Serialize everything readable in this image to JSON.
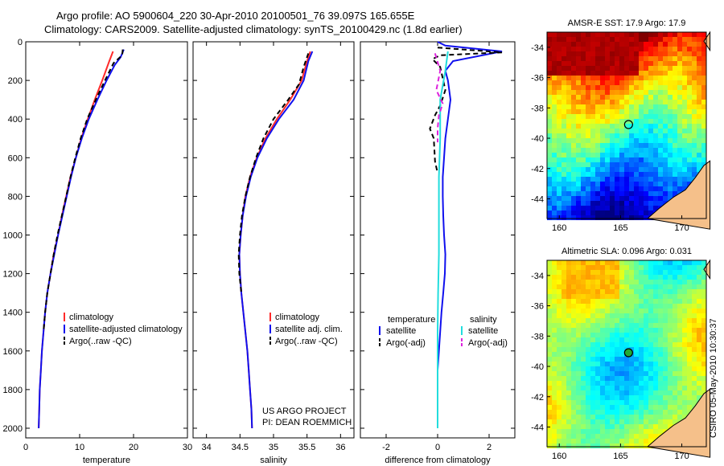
{
  "header": {
    "line1": "Argo profile: AO 5900604_220 30-Apr-2010 20100501_76 39.097S 165.655E",
    "line2": "Climatology: CARS2009. Satellite-adjusted climatology: synTS_20100429.nc (1.8d earlier)"
  },
  "colors": {
    "climatology": "#ff2a2a",
    "satellite": "#1010ee",
    "argo": "#000000",
    "sat_salinity": "#22dddd",
    "argo_salinity_adj": "#dd22dd"
  },
  "chart_data": [
    {
      "type": "line",
      "xlabel": "temperature",
      "xlim": [
        0,
        30
      ],
      "ylim": [
        0,
        2050
      ],
      "y_reversed": true,
      "x_ticks": [
        "0",
        "10",
        "20",
        "30"
      ],
      "y_ticks": [
        "0",
        "200",
        "400",
        "600",
        "800",
        "1000",
        "1200",
        "1400",
        "1600",
        "1800",
        "2000"
      ],
      "legend": [
        "climatology",
        "satellite-adjusted climatology",
        "Argo(..raw -QC)"
      ],
      "legend_placement": "bottom-right",
      "series": [
        {
          "name": "climatology",
          "color": "#ff2a2a",
          "dash": false,
          "points": [
            [
              16.2,
              50
            ],
            [
              15.5,
              100
            ],
            [
              14.2,
              200
            ],
            [
              12.8,
              300
            ],
            [
              11.5,
              400
            ],
            [
              10.3,
              500
            ],
            [
              9.3,
              600
            ],
            [
              8.3,
              700
            ],
            [
              7.5,
              800
            ],
            [
              6.7,
              900
            ],
            [
              6.0,
              1000
            ],
            [
              5.2,
              1100
            ],
            [
              4.6,
              1200
            ],
            [
              4.0,
              1300
            ],
            [
              3.6,
              1400
            ],
            [
              3.3,
              1500
            ],
            [
              3.0,
              1600
            ],
            [
              2.8,
              1700
            ],
            [
              2.6,
              1800
            ],
            [
              2.5,
              1900
            ],
            [
              2.4,
              2000
            ]
          ]
        },
        {
          "name": "satellite-adjusted climatology",
          "color": "#1010ee",
          "dash": false,
          "points": [
            [
              18.2,
              40
            ],
            [
              17.6,
              80
            ],
            [
              16.5,
              120
            ],
            [
              15.0,
              200
            ],
            [
              13.3,
              300
            ],
            [
              11.7,
              400
            ],
            [
              10.4,
              500
            ],
            [
              9.3,
              600
            ],
            [
              8.4,
              700
            ],
            [
              7.6,
              800
            ],
            [
              6.8,
              900
            ],
            [
              6.0,
              1000
            ],
            [
              5.3,
              1100
            ],
            [
              4.6,
              1200
            ],
            [
              4.0,
              1300
            ],
            [
              3.6,
              1400
            ],
            [
              3.3,
              1500
            ],
            [
              3.0,
              1600
            ],
            [
              2.8,
              1700
            ],
            [
              2.6,
              1800
            ],
            [
              2.5,
              1900
            ],
            [
              2.4,
              2000
            ]
          ]
        },
        {
          "name": "Argo(..raw -QC)",
          "color": "#000000",
          "dash": true,
          "points": [
            [
              18.0,
              40
            ],
            [
              17.9,
              70
            ],
            [
              16.3,
              110
            ],
            [
              14.7,
              200
            ],
            [
              13.0,
              300
            ],
            [
              11.4,
              400
            ],
            [
              10.2,
              500
            ],
            [
              9.2,
              600
            ],
            [
              8.3,
              700
            ],
            [
              7.5,
              800
            ],
            [
              6.7,
              900
            ],
            [
              5.9,
              1000
            ],
            [
              5.2,
              1100
            ],
            [
              4.6,
              1200
            ],
            [
              4.0,
              1300
            ],
            [
              3.6,
              1400
            ],
            [
              3.3,
              1500
            ]
          ]
        }
      ]
    },
    {
      "type": "line",
      "xlabel": "salinity",
      "xlim": [
        33.8,
        36.2
      ],
      "ylim": [
        0,
        2050
      ],
      "y_reversed": true,
      "x_ticks": [
        "34",
        "34.5",
        "35",
        "35.5",
        "36"
      ],
      "legend": [
        "climatology",
        "satellite adj. clim.",
        "Argo(..raw -QC)"
      ],
      "legend_placement": "bottom-right",
      "annotation": [
        "US ARGO PROJECT",
        "PI: DEAN ROEMMICH"
      ],
      "series": [
        {
          "name": "climatology",
          "color": "#ff2a2a",
          "dash": false,
          "points": [
            [
              35.55,
              50
            ],
            [
              35.5,
              100
            ],
            [
              35.42,
              200
            ],
            [
              35.25,
              300
            ],
            [
              35.05,
              400
            ],
            [
              34.88,
              500
            ],
            [
              34.75,
              600
            ],
            [
              34.65,
              700
            ],
            [
              34.58,
              800
            ],
            [
              34.54,
              900
            ],
            [
              34.51,
              1000
            ],
            [
              34.49,
              1100
            ],
            [
              34.5,
              1200
            ],
            [
              34.52,
              1300
            ],
            [
              34.55,
              1400
            ],
            [
              34.58,
              1500
            ],
            [
              34.61,
              1600
            ],
            [
              34.63,
              1700
            ],
            [
              34.65,
              1800
            ],
            [
              34.67,
              1900
            ],
            [
              34.68,
              2000
            ]
          ]
        },
        {
          "name": "satellite adj. clim.",
          "color": "#1010ee",
          "dash": false,
          "points": [
            [
              35.58,
              50
            ],
            [
              35.52,
              100
            ],
            [
              35.45,
              200
            ],
            [
              35.3,
              300
            ],
            [
              35.08,
              400
            ],
            [
              34.9,
              500
            ],
            [
              34.76,
              600
            ],
            [
              34.66,
              700
            ],
            [
              34.59,
              800
            ],
            [
              34.54,
              900
            ],
            [
              34.51,
              1000
            ],
            [
              34.49,
              1100
            ],
            [
              34.5,
              1200
            ],
            [
              34.52,
              1300
            ],
            [
              34.55,
              1400
            ],
            [
              34.58,
              1500
            ],
            [
              34.61,
              1600
            ],
            [
              34.63,
              1700
            ],
            [
              34.65,
              1800
            ],
            [
              34.67,
              1900
            ],
            [
              34.68,
              2000
            ]
          ]
        },
        {
          "name": "Argo(..raw -QC)",
          "color": "#000000",
          "dash": true,
          "points": [
            [
              35.52,
              60
            ],
            [
              35.45,
              130
            ],
            [
              35.38,
              220
            ],
            [
              35.22,
              300
            ],
            [
              35.0,
              400
            ],
            [
              34.85,
              500
            ],
            [
              34.74,
              600
            ],
            [
              34.65,
              700
            ],
            [
              34.58,
              800
            ],
            [
              34.53,
              900
            ],
            [
              34.5,
              1000
            ],
            [
              34.48,
              1100
            ],
            [
              34.49,
              1200
            ],
            [
              34.52,
              1300
            ]
          ]
        }
      ]
    },
    {
      "type": "line",
      "xlabel": "difference from climatology",
      "xlim": [
        -3,
        3
      ],
      "ylim": [
        0,
        2050
      ],
      "y_reversed": true,
      "x_ticks": [
        "-2",
        "0",
        "2"
      ],
      "legend_groups": [
        {
          "title": "temperature",
          "items": [
            "satellite",
            "Argo(-adj)"
          ]
        },
        {
          "title": "salinity",
          "items": [
            "satellite",
            "Argo(-adj)"
          ]
        }
      ],
      "legend_placement": "bottom",
      "series": [
        {
          "name": "satellite",
          "group": "temperature",
          "color": "#1010ee",
          "dash": false,
          "points": [
            [
              0,
              0
            ],
            [
              0.3,
              20
            ],
            [
              2.5,
              50
            ],
            [
              0.6,
              100
            ],
            [
              0.3,
              150
            ],
            [
              0.4,
              200
            ],
            [
              0.5,
              300
            ],
            [
              0.4,
              400
            ],
            [
              0.3,
              500
            ],
            [
              0.25,
              600
            ],
            [
              0.2,
              700
            ],
            [
              0.2,
              800
            ],
            [
              0.22,
              900
            ],
            [
              0.25,
              1000
            ],
            [
              0.3,
              1100
            ],
            [
              0.28,
              1200
            ],
            [
              0.22,
              1300
            ],
            [
              0.15,
              1400
            ],
            [
              0.1,
              1500
            ],
            [
              0.05,
              1600
            ],
            [
              0,
              1700
            ],
            [
              0,
              1800
            ],
            [
              0,
              1900
            ],
            [
              0,
              2000
            ]
          ]
        },
        {
          "name": "Argo(-adj)",
          "group": "temperature",
          "color": "#000000",
          "dash": true,
          "points": [
            [
              0,
              30
            ],
            [
              2.5,
              55
            ],
            [
              0.1,
              70
            ],
            [
              -0.2,
              90
            ],
            [
              0.1,
              130
            ],
            [
              0.3,
              250
            ],
            [
              0.1,
              330
            ],
            [
              -0.1,
              380
            ],
            [
              -0.3,
              450
            ],
            [
              -0.15,
              500
            ],
            [
              -0.1,
              620
            ],
            [
              0,
              680
            ]
          ]
        },
        {
          "name": "satellite",
          "group": "salinity",
          "color": "#22dddd",
          "dash": false,
          "points": [
            [
              0.4,
              50
            ],
            [
              0.3,
              150
            ],
            [
              0.1,
              300
            ],
            [
              0.1,
              500
            ],
            [
              0.05,
              700
            ],
            [
              0.05,
              900
            ],
            [
              0.05,
              1100
            ],
            [
              0.02,
              1300
            ],
            [
              0,
              1500
            ],
            [
              0,
              1700
            ],
            [
              0,
              2000
            ]
          ]
        },
        {
          "name": "Argo(-adj)",
          "group": "salinity",
          "color": "#dd22dd",
          "dash": true,
          "points": [
            [
              -0.1,
              60
            ],
            [
              0.1,
              150
            ],
            [
              -0.05,
              250
            ],
            [
              0.2,
              320
            ],
            [
              0.05,
              380
            ],
            [
              0,
              450
            ],
            [
              0,
              520
            ]
          ]
        }
      ]
    },
    {
      "type": "heatmap",
      "title": "AMSR-E SST: 17.9  Argo: 17.9",
      "xlim": [
        159,
        172
      ],
      "ylim": [
        -45.3,
        -33
      ],
      "x_ticks": [
        "160",
        "165",
        "170"
      ],
      "y_ticks": [
        "-34",
        "-36",
        "-38",
        "-40",
        "-42",
        "-44"
      ],
      "marker": {
        "lon": 165.655,
        "lat": -39.097
      },
      "colormap": "jet"
    },
    {
      "type": "heatmap",
      "title": "Altimetric SLA: 0.096  Argo: 0.031",
      "xlim": [
        159,
        172
      ],
      "ylim": [
        -45.3,
        -33
      ],
      "x_ticks": [
        "160",
        "165",
        "170"
      ],
      "y_ticks": [
        "-34",
        "-36",
        "-38",
        "-40",
        "-42",
        "-44"
      ],
      "marker": {
        "lon": 165.655,
        "lat": -39.097
      },
      "colormap": "jet"
    }
  ],
  "footer": {
    "stamp": "CSIRO 05-May-2010 10:30:37"
  }
}
